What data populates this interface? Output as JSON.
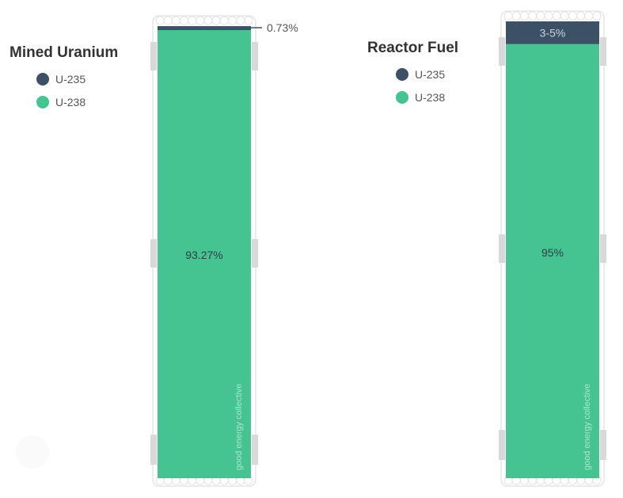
{
  "chart_data": [
    {
      "type": "bar",
      "stacked": true,
      "title": "Mined Uranium",
      "categories": [
        "Mined Uranium"
      ],
      "series": [
        {
          "name": "U-235",
          "values": [
            0.73
          ],
          "label": "0.73%",
          "color": "#3d5166"
        },
        {
          "name": "U-238",
          "values": [
            93.27
          ],
          "label": "93.27%",
          "color": "#45c391"
        }
      ],
      "legend": [
        "U-235",
        "U-238"
      ],
      "watermark": "good energy collective"
    },
    {
      "type": "bar",
      "stacked": true,
      "title": "Reactor Fuel",
      "categories": [
        "Reactor Fuel"
      ],
      "series": [
        {
          "name": "U-235",
          "values": [
            5
          ],
          "label": "3-5%",
          "color": "#3d5166"
        },
        {
          "name": "U-238",
          "values": [
            95
          ],
          "label": "95%",
          "color": "#45c391"
        }
      ],
      "legend": [
        "U-235",
        "U-238"
      ],
      "watermark": "good energy collective"
    }
  ]
}
